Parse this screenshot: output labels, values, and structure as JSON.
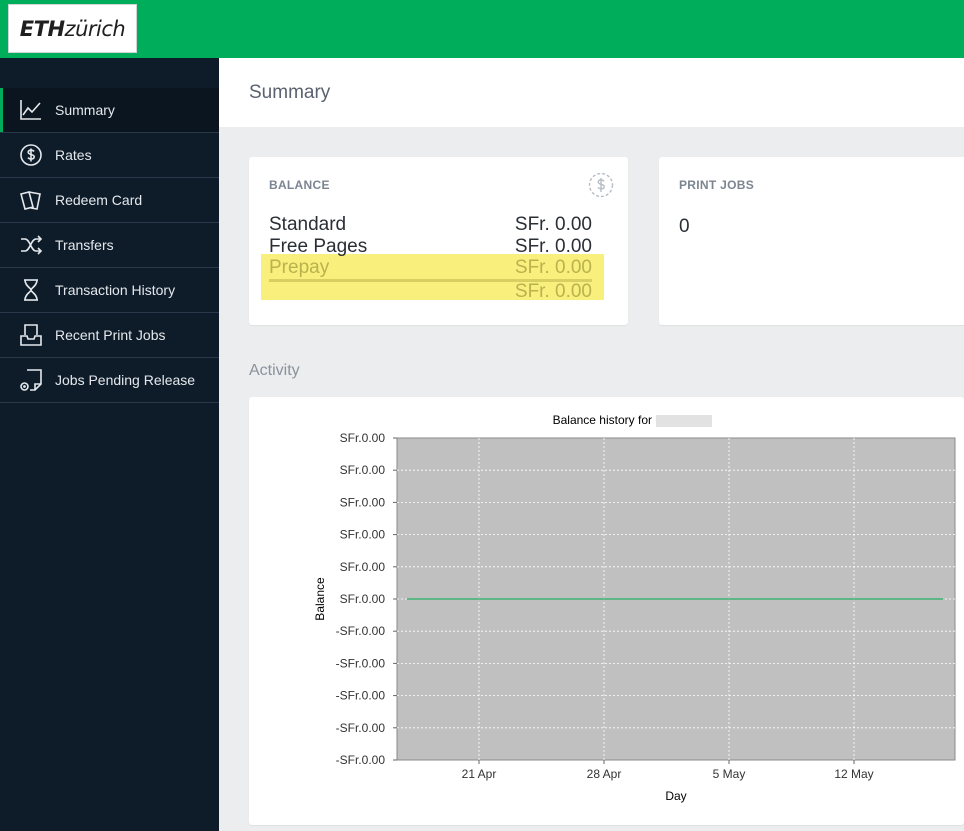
{
  "brand": {
    "logo_bold": "ETH",
    "logo_light": "zürich"
  },
  "sidebar": {
    "items": [
      {
        "label": "Summary",
        "icon": "line-chart-icon",
        "active": true
      },
      {
        "label": "Rates",
        "icon": "dollar-circle-icon",
        "active": false
      },
      {
        "label": "Redeem Card",
        "icon": "cards-icon",
        "active": false
      },
      {
        "label": "Transfers",
        "icon": "shuffle-icon",
        "active": false
      },
      {
        "label": "Transaction History",
        "icon": "hourglass-icon",
        "active": false
      },
      {
        "label": "Recent Print Jobs",
        "icon": "inbox-tray-icon",
        "active": false
      },
      {
        "label": "Jobs Pending Release",
        "icon": "document-pending-icon",
        "active": false
      }
    ]
  },
  "header": {
    "title": "Summary"
  },
  "balance": {
    "label": "BALANCE",
    "rows": [
      {
        "name": "Standard",
        "amount": "SFr. 0.00"
      },
      {
        "name": "Free Pages",
        "amount": "SFr. 0.00"
      },
      {
        "name": "Prepay",
        "amount": "SFr. 0.00"
      }
    ],
    "total": "SFr. 0.00"
  },
  "print_jobs": {
    "label": "PRINT JOBS",
    "value": "0"
  },
  "activity": {
    "title": "Activity"
  },
  "colors": {
    "brand_green": "#00ad5a",
    "sidebar_bg": "#0e1c2a",
    "highlight": "#f9ef7d",
    "plot_bg": "#c0c0c0",
    "series": "#3cb371"
  },
  "chart_data": {
    "type": "line",
    "title": "Balance history for",
    "xlabel": "Day",
    "ylabel": "Balance",
    "x_ticks": [
      "21 Apr",
      "28 Apr",
      "5 May",
      "12 May"
    ],
    "y_ticks": [
      "SFr.0.00",
      "SFr.0.00",
      "SFr.0.00",
      "SFr.0.00",
      "SFr.0.00",
      "SFr.0.00",
      "-SFr.0.00",
      "-SFr.0.00",
      "-SFr.0.00",
      "-SFr.0.00",
      "-SFr.0.00"
    ],
    "ylim": [
      -0.005,
      0.005
    ],
    "series": [
      {
        "values": [
          0,
          0
        ]
      }
    ],
    "grid": true
  }
}
